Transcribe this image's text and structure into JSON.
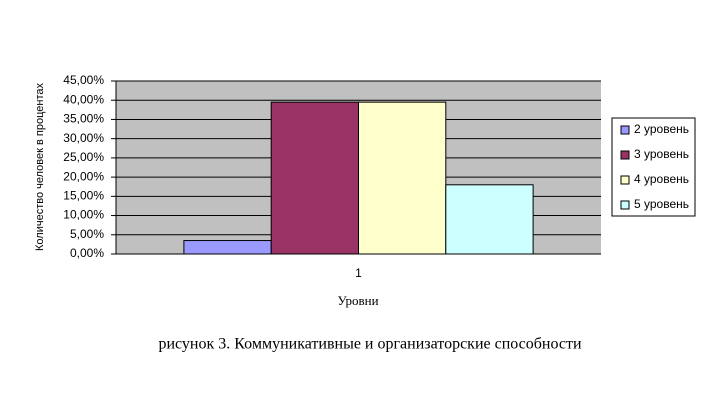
{
  "chart_data": {
    "type": "bar",
    "title": "рисунок 3. Коммуникативные и организаторские способности",
    "x_label": "Уровни",
    "y_label": "Количество человек в процентах",
    "categories": [
      "1"
    ],
    "series": [
      {
        "name": "2 уровень",
        "color": "#9999ff",
        "values": [
          3.5
        ]
      },
      {
        "name": "3 уровень",
        "color": "#993366",
        "values": [
          39.5
        ]
      },
      {
        "name": "4 уровень",
        "color": "#ffffcc",
        "values": [
          39.5
        ]
      },
      {
        "name": "5 уровень",
        "color": "#ccffff",
        "values": [
          18
        ]
      }
    ],
    "ylim": [
      0,
      45
    ],
    "yticks": [
      {
        "value": 0,
        "label": "0,00%"
      },
      {
        "value": 5,
        "label": "5,00%"
      },
      {
        "value": 10,
        "label": "10,00%"
      },
      {
        "value": 15,
        "label": "15,00%"
      },
      {
        "value": 20,
        "label": "20,00%"
      },
      {
        "value": 25,
        "label": "25,00%"
      },
      {
        "value": 30,
        "label": "30,00%"
      },
      {
        "value": 35,
        "label": "35,00%"
      },
      {
        "value": 40,
        "label": "40,00%"
      },
      {
        "value": 45,
        "label": "45,00%"
      }
    ],
    "grid": true,
    "legend": "right"
  }
}
